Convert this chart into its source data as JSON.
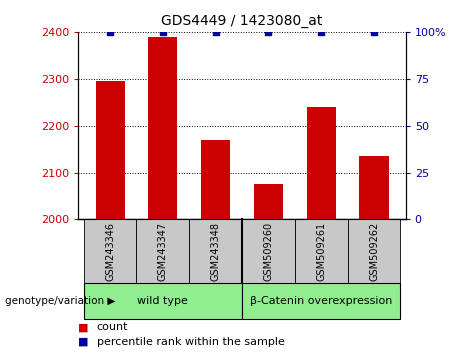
{
  "title": "GDS4449 / 1423080_at",
  "categories": [
    "GSM243346",
    "GSM243347",
    "GSM243348",
    "GSM509260",
    "GSM509261",
    "GSM509262"
  ],
  "red_values": [
    2295,
    2390,
    2170,
    2075,
    2240,
    2135
  ],
  "blue_values": [
    100,
    100,
    100,
    100,
    100,
    100
  ],
  "ylim_left": [
    2000,
    2400
  ],
  "ylim_right": [
    0,
    100
  ],
  "yticks_left": [
    2000,
    2100,
    2200,
    2300,
    2400
  ],
  "yticks_right": [
    0,
    25,
    50,
    75,
    100
  ],
  "groups": [
    {
      "label": "wild type",
      "color": "#90EE90"
    },
    {
      "label": "β-Catenin overexpression",
      "color": "#90EE90"
    }
  ],
  "group_label": "genotype/variation",
  "bar_color_red": "#CC0000",
  "bar_color_blue": "#000099",
  "bar_width": 0.55,
  "bg_xtick_area": "#c8c8c8",
  "legend_count_color": "#CC0000",
  "legend_percentile_color": "#000099"
}
